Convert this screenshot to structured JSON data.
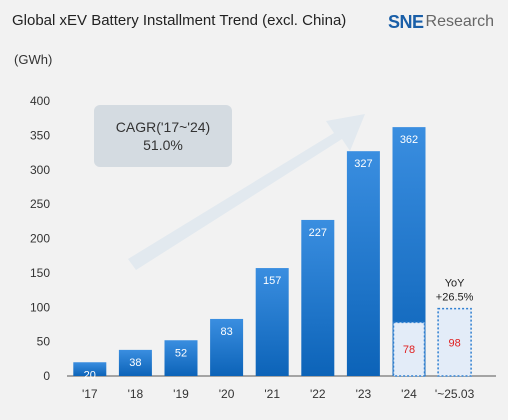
{
  "header": {
    "title": "Global xEV Battery Installment Trend (excl. China)",
    "brand_sne": "SNE",
    "brand_research": "Research"
  },
  "chart_data": {
    "type": "bar",
    "title": "Global xEV Battery Installment Trend (excl. China)",
    "unit_label": "(GWh)",
    "ylim": [
      0,
      400
    ],
    "yticks": [
      0,
      50,
      100,
      150,
      200,
      250,
      300,
      350,
      400
    ],
    "grid": false,
    "categories": [
      "'17",
      "'18",
      "'19",
      "'20",
      "'21",
      "'22",
      "'23",
      "'24",
      "'~25.03"
    ],
    "values": [
      20,
      38,
      52,
      83,
      157,
      227,
      327,
      362,
      98
    ],
    "bar_labels": [
      "20",
      "38",
      "52",
      "83",
      "157",
      "227",
      "327",
      "362",
      "98"
    ],
    "highlight": {
      "category": "'24",
      "value": 78,
      "label": "78"
    },
    "last_bar_style": "dotted-outline",
    "annotations": {
      "cagr_line1": "CAGR('17~'24)",
      "cagr_line2": "51.0%",
      "yoy_line1": "YoY",
      "yoy_line2": "+26.5%"
    },
    "colors": {
      "bar_top": "#3a8ee0",
      "bar_bottom": "#0c63b8",
      "highlight_fill": "#e3ecf8",
      "highlight_border": "#2f7fd0",
      "red_text": "#e02020",
      "arrow": "#e2e9ef"
    }
  }
}
